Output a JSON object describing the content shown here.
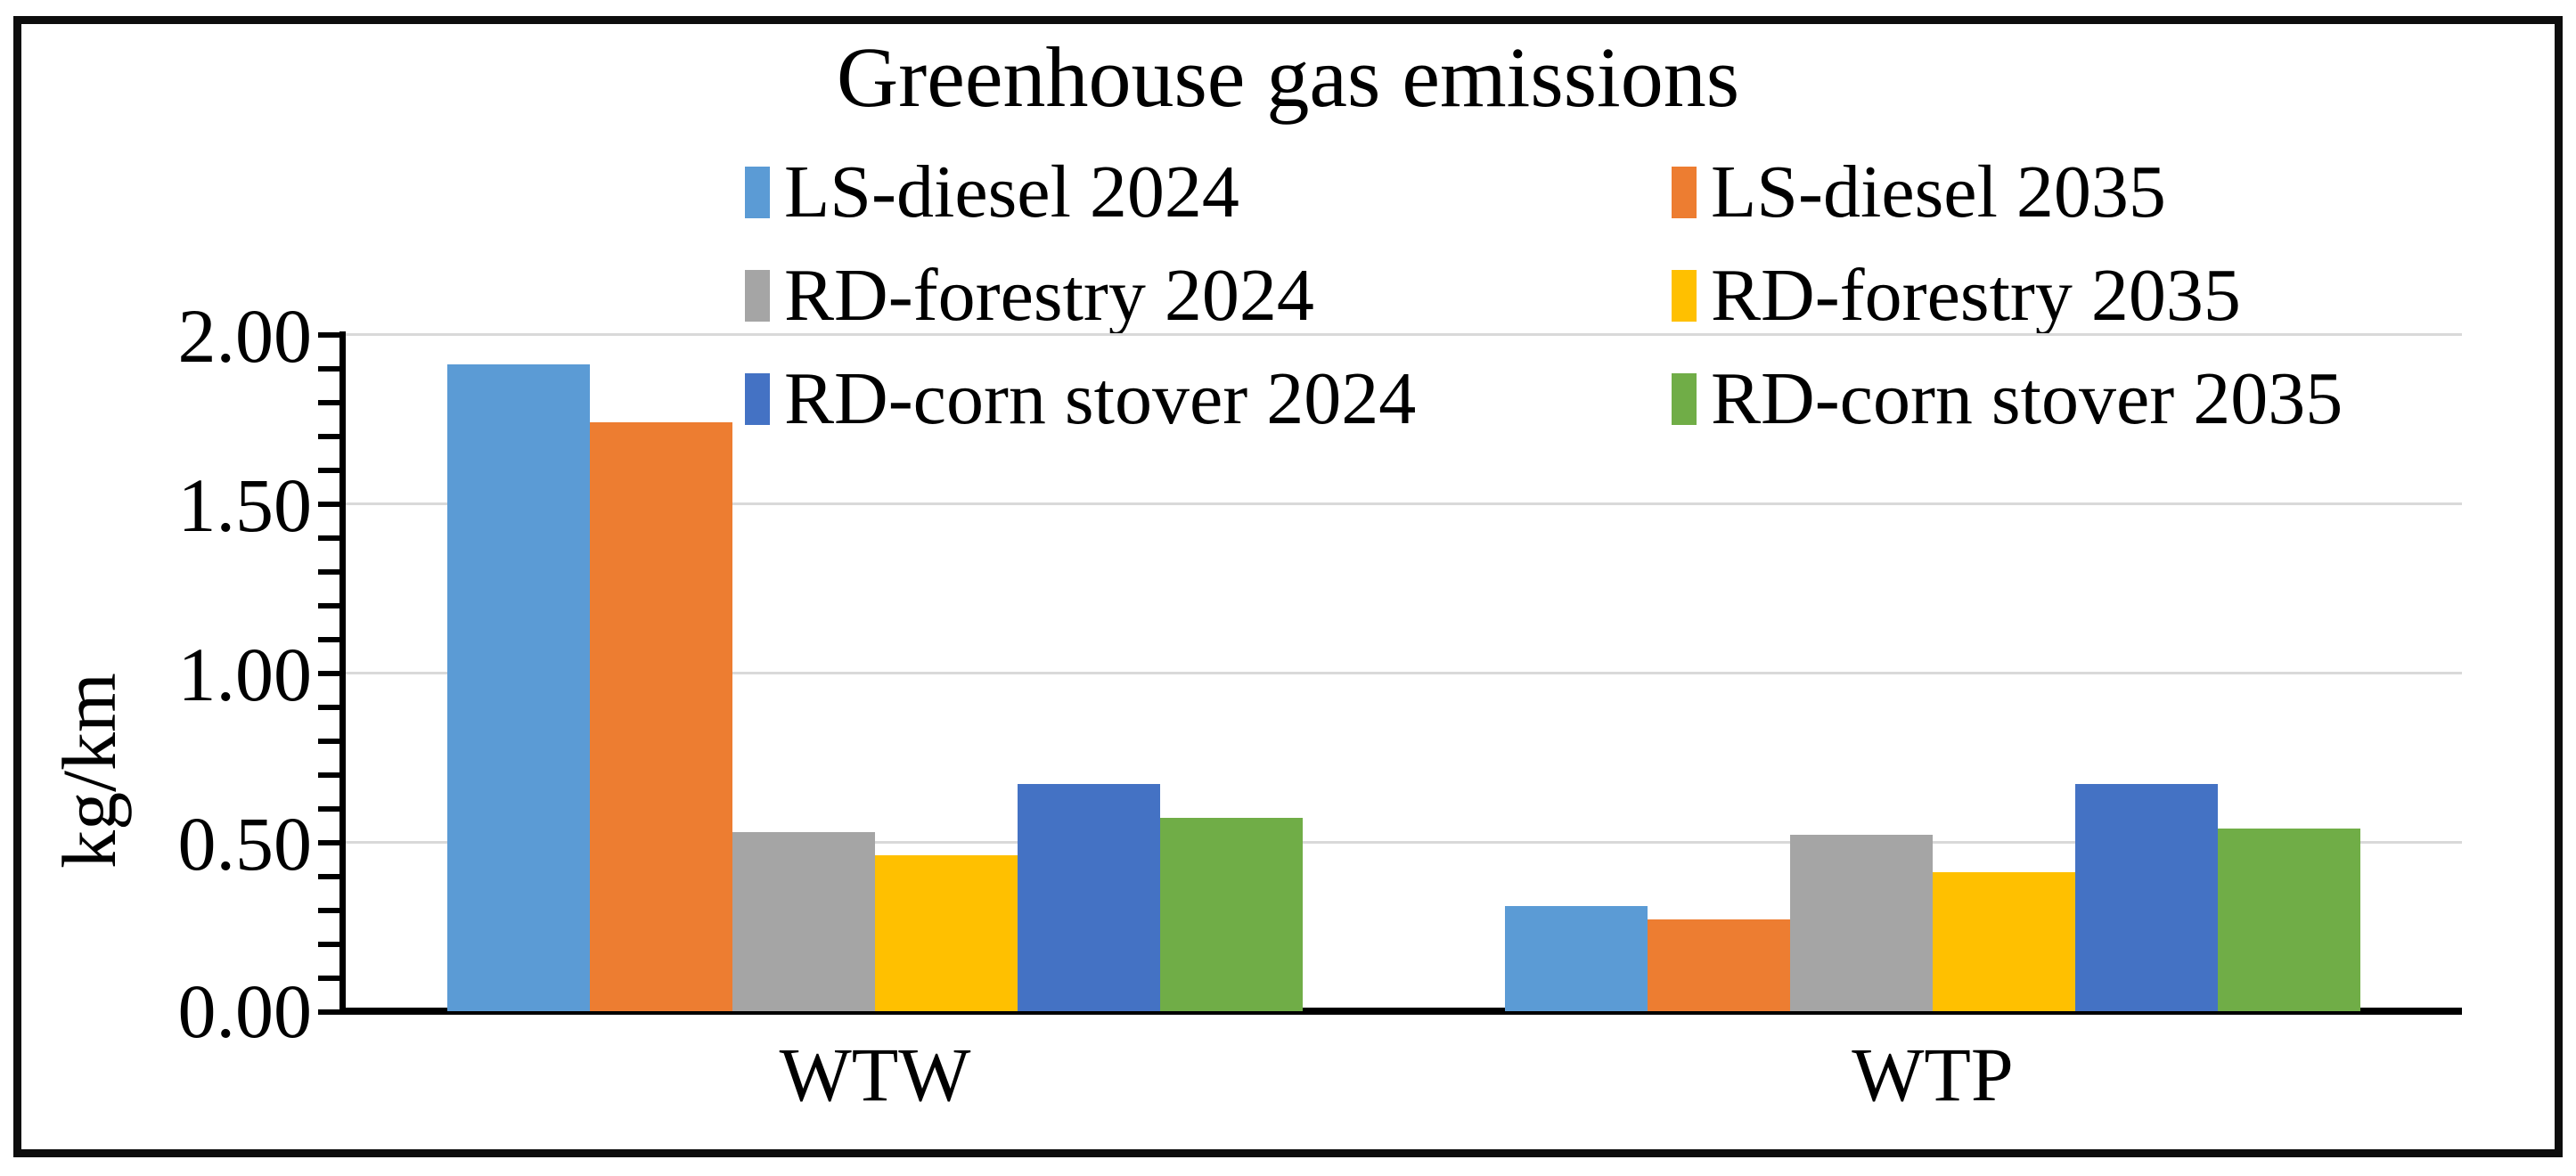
{
  "chart_data": {
    "type": "bar",
    "title": "Greenhouse gas emissions",
    "ylabel": "kg/km",
    "xlabel": "",
    "categories": [
      "WTW",
      "WTP"
    ],
    "series": [
      {
        "name": "LS-diesel 2024",
        "color": "#5B9BD5",
        "values": [
          1.91,
          0.31
        ]
      },
      {
        "name": "LS-diesel 2035",
        "color": "#ED7D31",
        "values": [
          1.74,
          0.27
        ]
      },
      {
        "name": "RD-forestry 2024",
        "color": "#A5A5A5",
        "values": [
          0.53,
          0.52
        ]
      },
      {
        "name": "RD-forestry 2035",
        "color": "#FFC000",
        "values": [
          0.46,
          0.41
        ]
      },
      {
        "name": "RD-corn stover 2024",
        "color": "#4472C4",
        "values": [
          0.67,
          0.67
        ]
      },
      {
        "name": "RD-corn stover 2035",
        "color": "#70AD47",
        "values": [
          0.57,
          0.54
        ]
      }
    ],
    "y_ticks": [
      "2.00",
      "1.50",
      "1.00",
      "0.50",
      "0.00"
    ],
    "ylim": [
      0,
      2.0
    ],
    "y_major_step": 0.5,
    "y_minor_step": 0.1,
    "grid": "horizontal-major",
    "gridline_color": "#D9D9D9",
    "axis_color": "#000000",
    "legend_position": "top, two columns"
  }
}
